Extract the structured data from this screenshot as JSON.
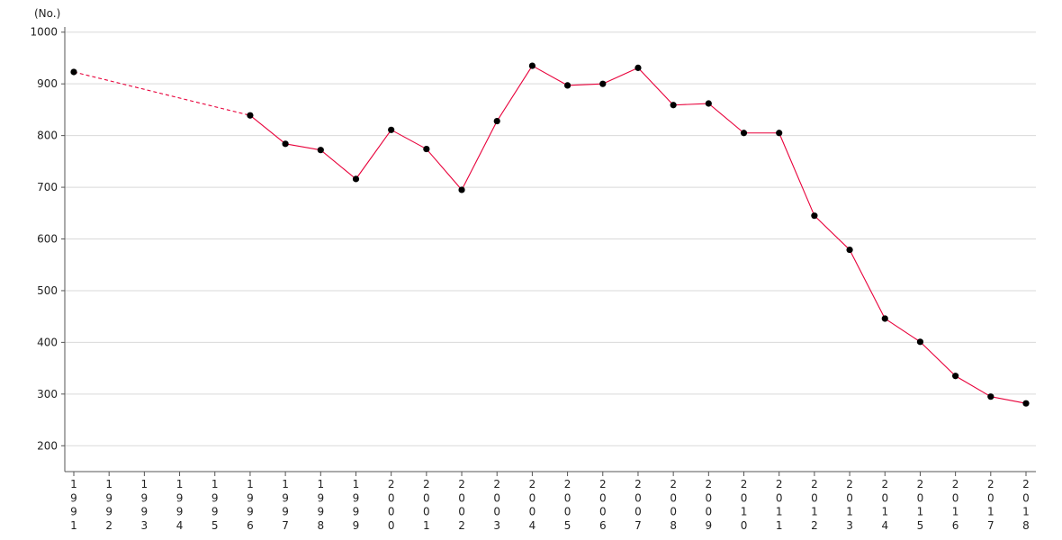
{
  "chart_data": {
    "type": "line",
    "title": "",
    "xlabel": "",
    "ylabel": "(No.)",
    "ylim": [
      150,
      1010
    ],
    "yticks": [
      200,
      300,
      400,
      500,
      600,
      700,
      800,
      900,
      1000
    ],
    "grid": true,
    "legend": "none",
    "categories": [
      "1991",
      "1992",
      "1993",
      "1994",
      "1995",
      "1996",
      "1997",
      "1998",
      "1999",
      "2000",
      "2001",
      "2002",
      "2003",
      "2004",
      "2005",
      "2006",
      "2007",
      "2008",
      "2009",
      "2010",
      "2011",
      "2012",
      "2013",
      "2014",
      "2015",
      "2016",
      "2017",
      "2018"
    ],
    "series": [
      {
        "values": [
          923,
          null,
          null,
          null,
          null,
          839,
          784,
          772,
          716,
          811,
          774,
          695,
          828,
          935,
          897,
          900,
          931,
          859,
          862,
          805,
          805,
          645,
          579,
          446,
          401,
          335,
          295,
          282
        ],
        "color": "#e8003a",
        "marker_color": "#000000",
        "gap_style": "dashed"
      }
    ]
  }
}
